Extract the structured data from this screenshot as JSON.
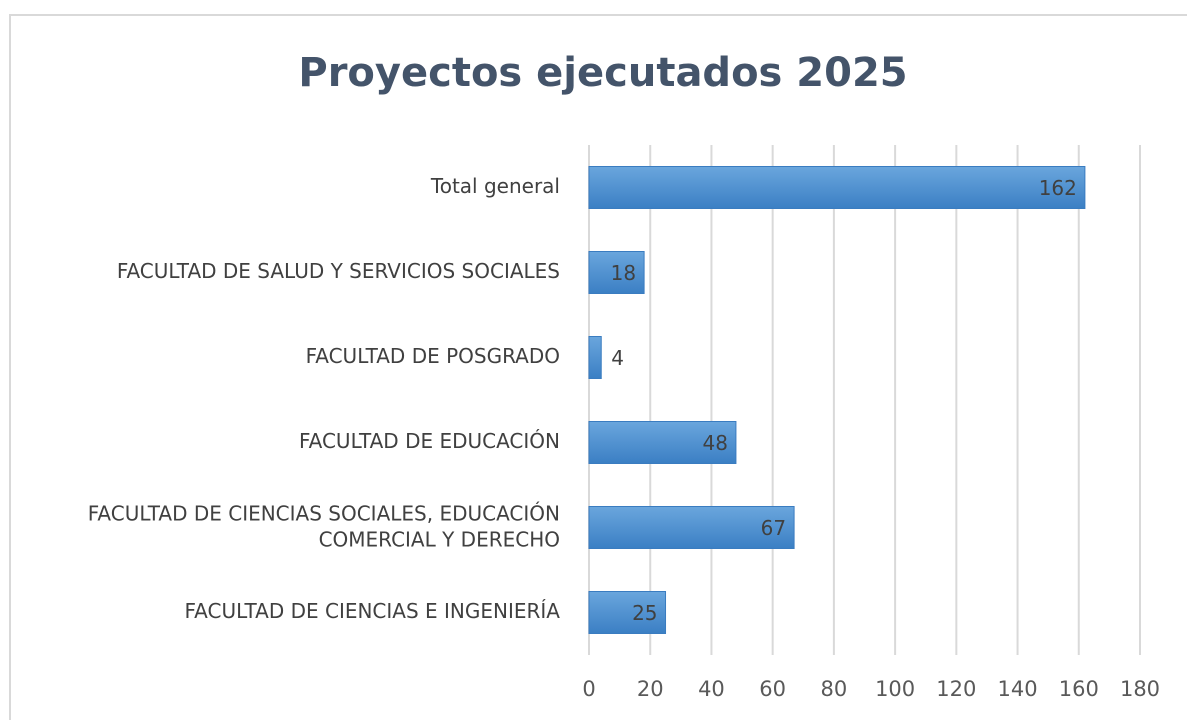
{
  "chart_data": {
    "type": "bar",
    "orientation": "horizontal",
    "title": "Proyectos ejecutados 2025",
    "categories": [
      "Total general",
      "FACULTAD DE SALUD Y SERVICIOS SOCIALES",
      "FACULTAD DE POSGRADO",
      "FACULTAD DE EDUCACIÓN",
      "FACULTAD DE CIENCIAS SOCIALES, EDUCACIÓN COMERCIAL Y DERECHO",
      "FACULTAD DE CIENCIAS E INGENIERÍA"
    ],
    "values": [
      162,
      18,
      4,
      48,
      67,
      25
    ],
    "color": "#4a8fd1",
    "xlim": [
      0,
      180
    ],
    "xticks": [
      0,
      20,
      40,
      60,
      80,
      100,
      120,
      140,
      160,
      180
    ],
    "grid": true
  }
}
